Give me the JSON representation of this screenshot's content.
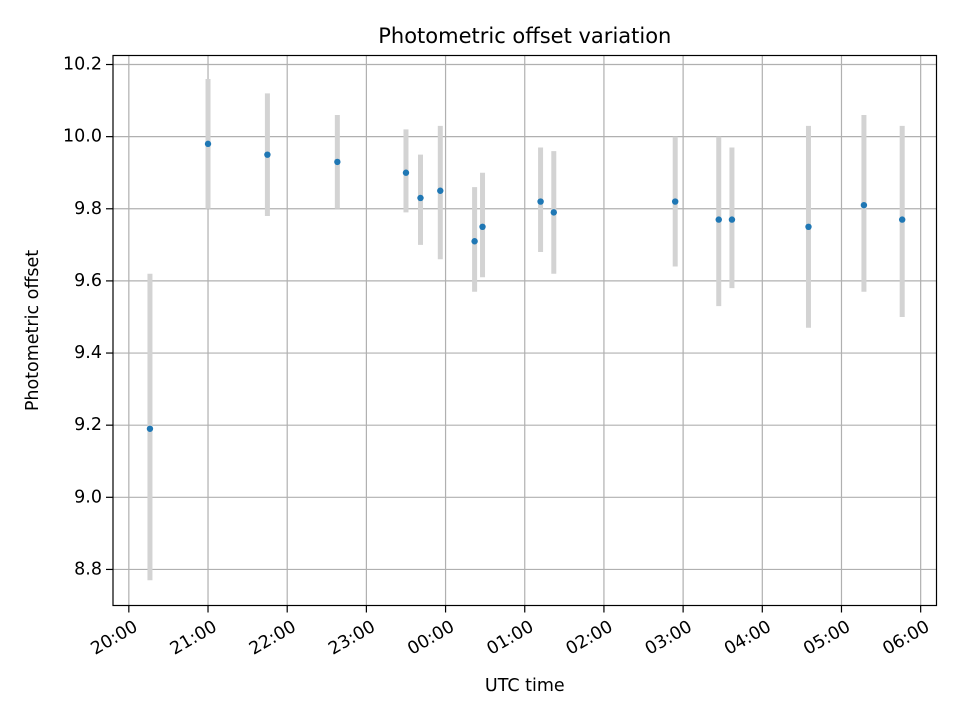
{
  "chart_data": {
    "type": "scatter",
    "title": "Photometric offset variation",
    "xlabel": "UTC time",
    "ylabel": "Photometric offset",
    "x_tick_labels": [
      "20:00",
      "21:00",
      "22:00",
      "23:00",
      "00:00",
      "01:00",
      "02:00",
      "03:00",
      "04:00",
      "05:00",
      "06:00"
    ],
    "x_tick_hours": [
      0,
      1,
      2,
      3,
      4,
      5,
      6,
      7,
      8,
      9,
      10
    ],
    "xlim_hours": [
      -0.2,
      10.2
    ],
    "xlim_times": [
      "19:48",
      "06:12"
    ],
    "y_ticks": [
      8.8,
      9.0,
      9.2,
      9.4,
      9.6,
      9.8,
      10.0,
      10.2
    ],
    "y_tick_labels": [
      "8.8",
      "9.0",
      "9.2",
      "9.4",
      "9.6",
      "9.8",
      "10.0",
      "10.2"
    ],
    "ylim": [
      8.7,
      10.225
    ],
    "grid": true,
    "marker_color": "#1f77b4",
    "errorbar_color": "#d3d3d3",
    "points": [
      {
        "time": "20:16",
        "y": 9.19,
        "lo": 8.77,
        "hi": 9.62
      },
      {
        "time": "21:00",
        "y": 9.98,
        "lo": 9.8,
        "hi": 10.16
      },
      {
        "time": "21:45",
        "y": 9.95,
        "lo": 9.78,
        "hi": 10.12
      },
      {
        "time": "22:38",
        "y": 9.93,
        "lo": 9.8,
        "hi": 10.06
      },
      {
        "time": "23:30",
        "y": 9.9,
        "lo": 9.79,
        "hi": 10.02
      },
      {
        "time": "23:41",
        "y": 9.83,
        "lo": 9.7,
        "hi": 9.95
      },
      {
        "time": "23:56",
        "y": 9.85,
        "lo": 9.66,
        "hi": 10.03
      },
      {
        "time": "00:22",
        "y": 9.71,
        "lo": 9.57,
        "hi": 9.86
      },
      {
        "time": "00:28",
        "y": 9.75,
        "lo": 9.61,
        "hi": 9.9
      },
      {
        "time": "01:12",
        "y": 9.82,
        "lo": 9.68,
        "hi": 9.97
      },
      {
        "time": "01:22",
        "y": 9.79,
        "lo": 9.62,
        "hi": 9.96
      },
      {
        "time": "02:54",
        "y": 9.82,
        "lo": 9.64,
        "hi": 10.0
      },
      {
        "time": "03:27",
        "y": 9.77,
        "lo": 9.53,
        "hi": 10.0
      },
      {
        "time": "03:37",
        "y": 9.77,
        "lo": 9.58,
        "hi": 9.97
      },
      {
        "time": "04:35",
        "y": 9.75,
        "lo": 9.47,
        "hi": 10.03
      },
      {
        "time": "05:17",
        "y": 9.81,
        "lo": 9.57,
        "hi": 10.06
      },
      {
        "time": "05:46",
        "y": 9.77,
        "lo": 9.5,
        "hi": 10.03
      }
    ]
  }
}
